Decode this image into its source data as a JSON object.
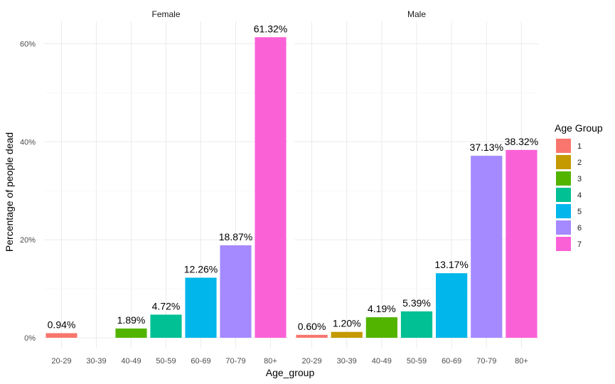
{
  "chart_data": {
    "type": "bar",
    "xlabel": "Age_group",
    "ylabel": "Percentage of people dead",
    "ylim": [
      0,
      65
    ],
    "y_ticks": [
      0,
      20,
      40,
      60
    ],
    "y_tick_labels": [
      "0%",
      "20%",
      "40%",
      "60%"
    ],
    "categories": [
      "20-29",
      "30-39",
      "40-49",
      "50-59",
      "60-69",
      "70-79",
      "80+"
    ],
    "facets": [
      {
        "name": "Female",
        "values": [
          0.94,
          null,
          1.89,
          4.72,
          12.26,
          18.87,
          61.32
        ],
        "labels": [
          "0.94%",
          "",
          "1.89%",
          "4.72%",
          "12.26%",
          "18.87%",
          "61.32%"
        ]
      },
      {
        "name": "Male",
        "values": [
          0.6,
          1.2,
          4.19,
          5.39,
          13.17,
          37.13,
          38.32
        ],
        "labels": [
          "0.60%",
          "1.20%",
          "4.19%",
          "5.39%",
          "13.17%",
          "37.13%",
          "38.32%"
        ]
      }
    ],
    "legend": {
      "title": "Age Group",
      "position": "right",
      "items": [
        "1",
        "2",
        "3",
        "4",
        "5",
        "6",
        "7"
      ]
    },
    "colors": [
      "#F8766D",
      "#C49A00",
      "#53B400",
      "#00C094",
      "#00B6EB",
      "#A58AFF",
      "#FB61D7"
    ],
    "grid": true
  }
}
